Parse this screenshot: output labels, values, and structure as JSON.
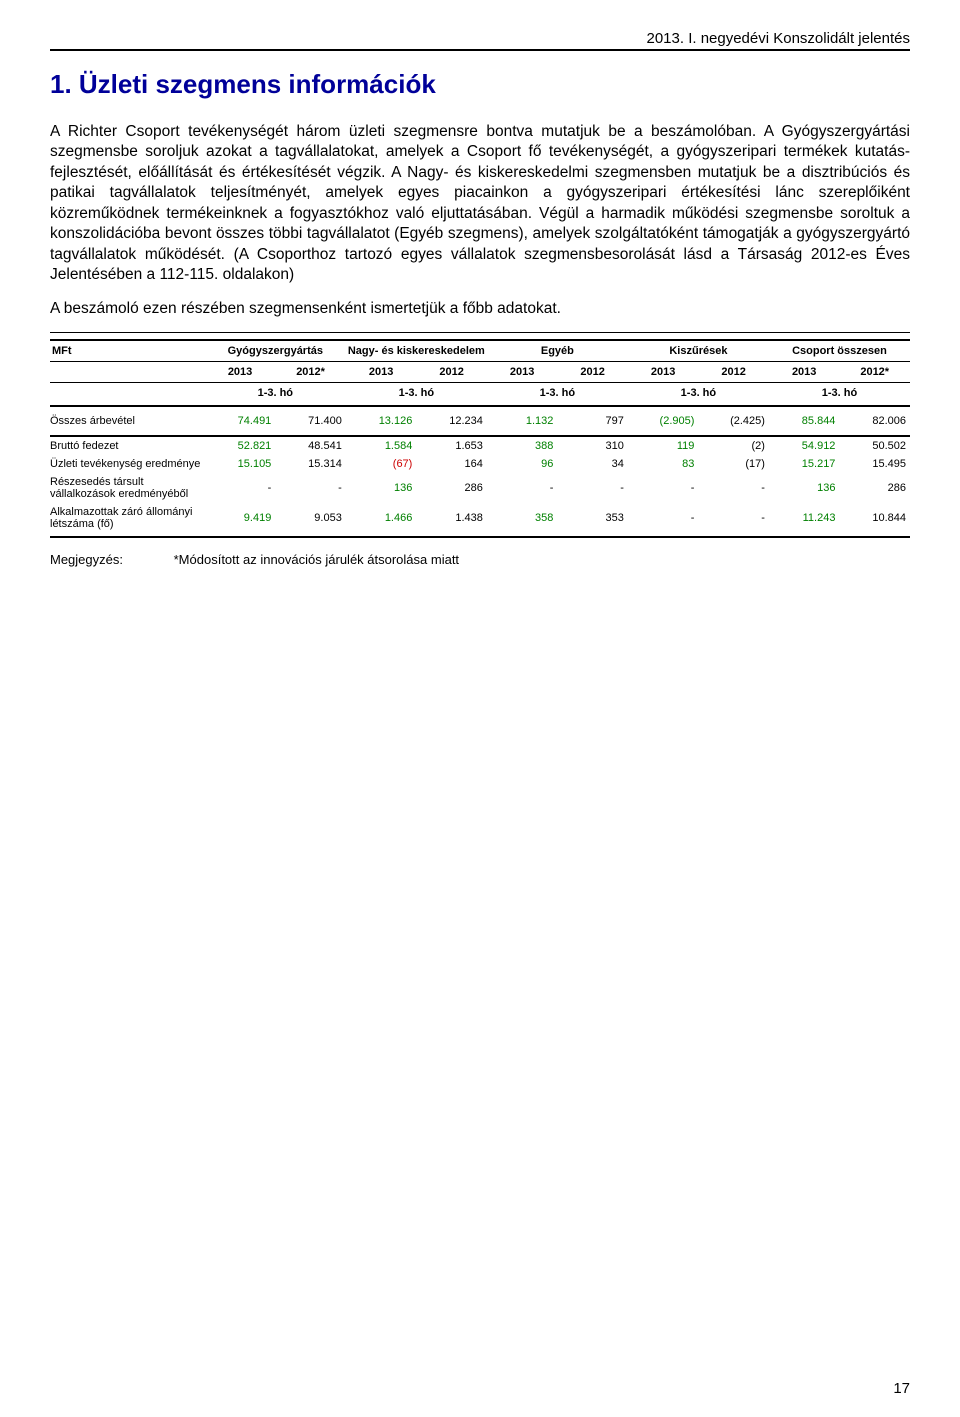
{
  "header": {
    "right_text": "2013. I. negyedévi Konszolidált jelentés"
  },
  "title": "1.  Üzleti szegmens információk",
  "paragraph1": "A Richter Csoport tevékenységét három üzleti szegmensre bontva mutatjuk be a beszámolóban. A Gyógyszergyártási szegmensbe soroljuk azokat a tagvállalatokat, amelyek a Csoport fő tevékenységét, a gyógyszeripari termékek kutatás-fejlesztését, előállítását és értékesítését végzik. A Nagy- és kiskereskedelmi szegmensben mutatjuk be a disztribúciós és patikai tagvállalatok teljesítményét, amelyek egyes piacainkon a gyógyszeripari értékesítési lánc szereplőiként közreműködnek termékeinknek a fogyasztókhoz való eljuttatásában. Végül a harmadik működési szegmensbe soroltuk a konszolidációba bevont összes többi tagvállalatot (Egyéb szegmens), amelyek szolgáltatóként támogatják a gyógyszergyártó tagvállalatok működését. (A Csoporthoz tartozó egyes vállalatok szegmensbesorolását lásd a Társaság 2012-es Éves Jelentésében a 112-115. oldalakon)",
  "paragraph2": "A beszámoló ezen részében szegmensenként ismertetjük a főbb adatokat.",
  "table": {
    "unit_label": "MFt",
    "col_groups": [
      "Gyógyszergyártás",
      "Nagy- és kiskereskedelem",
      "Egyéb",
      "Kiszűrések",
      "Csoport összesen"
    ],
    "years": [
      "2013",
      "2012*",
      "2013",
      "2012",
      "2013",
      "2012",
      "2013",
      "2012",
      "2013",
      "2012*"
    ],
    "period_label": "1-3. hó",
    "rows": [
      {
        "label": "Összes árbevétel",
        "vals": [
          {
            "t": "74.491",
            "c": "green"
          },
          {
            "t": "71.400",
            "c": ""
          },
          {
            "t": "13.126",
            "c": "green"
          },
          {
            "t": "12.234",
            "c": ""
          },
          {
            "t": "1.132",
            "c": "green"
          },
          {
            "t": "797",
            "c": ""
          },
          {
            "t": "(2.905)",
            "c": "green"
          },
          {
            "t": "(2.425)",
            "c": ""
          },
          {
            "t": "85.844",
            "c": "green"
          },
          {
            "t": "82.006",
            "c": ""
          }
        ],
        "cls": "row-first"
      },
      {
        "label": "Bruttó fedezet",
        "vals": [
          {
            "t": "52.821",
            "c": "green"
          },
          {
            "t": "48.541",
            "c": ""
          },
          {
            "t": "1.584",
            "c": "green"
          },
          {
            "t": "1.653",
            "c": ""
          },
          {
            "t": "388",
            "c": "green"
          },
          {
            "t": "310",
            "c": ""
          },
          {
            "t": "119",
            "c": "green"
          },
          {
            "t": "(2)",
            "c": ""
          },
          {
            "t": "54.912",
            "c": "green"
          },
          {
            "t": "50.502",
            "c": ""
          }
        ],
        "cls": ""
      },
      {
        "label": "Üzleti tevékenység eredménye",
        "vals": [
          {
            "t": "15.105",
            "c": "green"
          },
          {
            "t": "15.314",
            "c": ""
          },
          {
            "t": "(67)",
            "c": "red"
          },
          {
            "t": "164",
            "c": ""
          },
          {
            "t": "96",
            "c": "green"
          },
          {
            "t": "34",
            "c": ""
          },
          {
            "t": "83",
            "c": "green"
          },
          {
            "t": "(17)",
            "c": ""
          },
          {
            "t": "15.217",
            "c": "green"
          },
          {
            "t": "15.495",
            "c": ""
          }
        ],
        "cls": ""
      },
      {
        "label": "Részesedés társult vállalkozások eredményéből",
        "vals": [
          {
            "t": "-",
            "c": ""
          },
          {
            "t": "-",
            "c": ""
          },
          {
            "t": "136",
            "c": "green"
          },
          {
            "t": "286",
            "c": ""
          },
          {
            "t": "-",
            "c": ""
          },
          {
            "t": "-",
            "c": ""
          },
          {
            "t": "-",
            "c": ""
          },
          {
            "t": "-",
            "c": ""
          },
          {
            "t": "136",
            "c": "green"
          },
          {
            "t": "286",
            "c": ""
          }
        ],
        "cls": ""
      },
      {
        "label": "Alkalmazottak záró állományi létszáma (fő)",
        "vals": [
          {
            "t": "9.419",
            "c": "green"
          },
          {
            "t": "9.053",
            "c": ""
          },
          {
            "t": "1.466",
            "c": "green"
          },
          {
            "t": "1.438",
            "c": ""
          },
          {
            "t": "358",
            "c": "green"
          },
          {
            "t": "353",
            "c": ""
          },
          {
            "t": "-",
            "c": ""
          },
          {
            "t": "-",
            "c": ""
          },
          {
            "t": "11.243",
            "c": "green"
          },
          {
            "t": "10.844",
            "c": ""
          }
        ],
        "cls": "row-last"
      }
    ]
  },
  "note": {
    "label": "Megjegyzés:",
    "text": "*Módosított az innovációs járulék átsorolása miatt"
  },
  "page_number": "17"
}
